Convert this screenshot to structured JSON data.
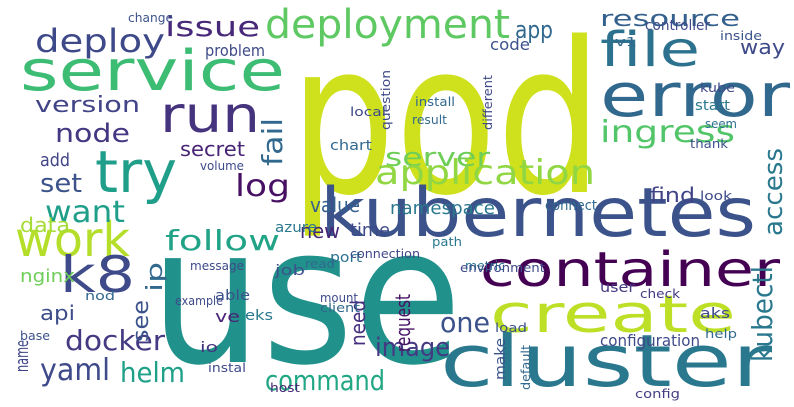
{
  "words": [
    "pod",
    "use",
    "kubernetes",
    "cluster",
    "container",
    "create",
    "service",
    "error",
    "file",
    "deployment",
    "run",
    "try",
    "work",
    "k8",
    "deploy",
    "issue",
    "app",
    "resource",
    "way",
    "node",
    "version",
    "set",
    "want",
    "data",
    "log",
    "fail",
    "follow",
    "server",
    "application",
    "ingress",
    "access",
    "secret",
    "namespace",
    "find",
    "value",
    "time",
    "new",
    "docker",
    "yaml",
    "helm",
    "command",
    "image",
    "one",
    "kubectl",
    "api",
    "see",
    "ip",
    "nginx",
    "name",
    "request",
    "need",
    "code",
    "problem",
    "add",
    "configuration",
    "check",
    "change",
    "chart",
    "kube",
    "start",
    "job",
    "port",
    "azure",
    "user",
    "aks",
    "help",
    "eks",
    "host",
    "client",
    "config",
    "mount",
    "load",
    "connect",
    "look",
    "thank",
    "seem",
    "volume",
    "metric",
    "connection",
    "read",
    "message",
    "able",
    "ve",
    "io",
    "instal",
    "nod",
    "example",
    "base",
    "controller",
    "inside",
    "v1",
    "different",
    "question",
    "install",
    "local",
    "result",
    "path",
    "environment",
    "make",
    "default"
  ]
}
